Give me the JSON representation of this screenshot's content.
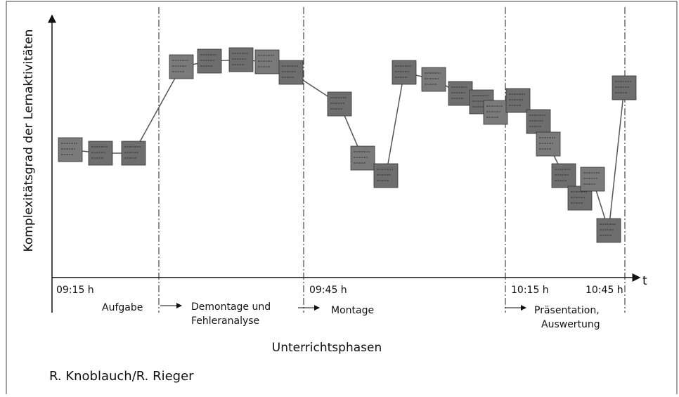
{
  "axis": {
    "y_label": "Komplexitätsgrad der Lernaktivitäten",
    "x_label": "t"
  },
  "time_labels": [
    "09:15 h",
    "09:45 h",
    "10:15 h",
    "10:45 h"
  ],
  "phases": [
    {
      "lines": [
        "Aufgabe"
      ]
    },
    {
      "lines": [
        "Demontage und",
        "Fehleranalyse"
      ]
    },
    {
      "lines": [
        "Montage"
      ]
    },
    {
      "lines": [
        "Präsentation,",
        "Auswertung"
      ]
    }
  ],
  "footer": {
    "caption": "Unterrichtsphasen",
    "author": "R. Knoblauch/R. Rieger"
  }
}
